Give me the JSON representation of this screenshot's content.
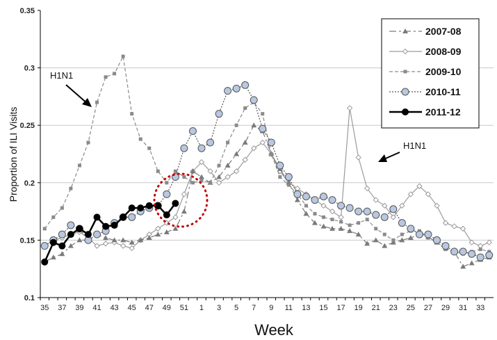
{
  "chart_data": {
    "type": "line",
    "xlabel": "Week",
    "ylabel": "Proportion of ILI Visits",
    "ylim": [
      0.1,
      0.35
    ],
    "yticks": [
      "0.1",
      "0.15",
      "0.2",
      "0.25",
      "0.3",
      "0.35"
    ],
    "x_tick_labels": [
      "35",
      "37",
      "39",
      "41",
      "43",
      "45",
      "47",
      "49",
      "51",
      "1",
      "3",
      "5",
      "7",
      "9",
      "11",
      "13",
      "15",
      "17",
      "19",
      "21",
      "23",
      "25",
      "27",
      "29",
      "31",
      "33"
    ],
    "x_weeks": [
      35,
      36,
      37,
      38,
      39,
      40,
      41,
      42,
      43,
      44,
      45,
      46,
      47,
      48,
      49,
      50,
      51,
      52,
      1,
      2,
      3,
      4,
      5,
      6,
      7,
      8,
      9,
      10,
      11,
      12,
      13,
      14,
      15,
      16,
      17,
      18,
      19,
      20,
      21,
      22,
      23,
      24,
      25,
      26,
      27,
      28,
      29,
      30,
      31,
      32,
      33,
      34
    ],
    "grid": "horizontal",
    "legend_position": "top-right",
    "annotations": [
      {
        "text": "H1N1",
        "target": "2009-10 peak"
      },
      {
        "text": "H1N1",
        "target": "2008-09 week 18 spike"
      }
    ],
    "series": [
      {
        "name": "2007-08",
        "color": "#7a7a7a",
        "marker": "triangle",
        "dash": "10,4,3,4",
        "values": [
          0.131,
          0.135,
          0.138,
          0.145,
          0.15,
          0.15,
          0.155,
          0.152,
          0.15,
          0.15,
          0.148,
          0.15,
          0.152,
          0.155,
          0.157,
          0.16,
          0.175,
          0.21,
          0.205,
          0.2,
          0.205,
          0.215,
          0.225,
          0.235,
          0.25,
          0.245,
          0.225,
          0.212,
          0.2,
          0.185,
          0.173,
          0.165,
          0.162,
          0.16,
          0.16,
          0.158,
          0.155,
          0.147,
          0.15,
          0.145,
          0.148,
          0.15,
          0.152,
          0.155,
          0.153,
          0.148,
          0.143,
          0.14,
          0.127,
          0.13,
          0.133,
          0.135
        ]
      },
      {
        "name": "2008-09",
        "color": "#9a9a9a",
        "marker": "diamond",
        "dash": "",
        "values": [
          0.145,
          0.15,
          0.152,
          0.155,
          0.157,
          0.152,
          0.145,
          0.147,
          0.148,
          0.145,
          0.143,
          0.15,
          0.155,
          0.16,
          0.165,
          0.17,
          0.19,
          0.21,
          0.218,
          0.21,
          0.2,
          0.205,
          0.21,
          0.22,
          0.23,
          0.235,
          0.225,
          0.21,
          0.2,
          0.195,
          0.19,
          0.185,
          0.18,
          0.175,
          0.17,
          0.265,
          0.222,
          0.195,
          0.185,
          0.18,
          0.17,
          0.18,
          0.19,
          0.197,
          0.19,
          0.18,
          0.165,
          0.162,
          0.16,
          0.148,
          0.145,
          0.148
        ]
      },
      {
        "name": "2009-10",
        "color": "#8a8a8a",
        "marker": "square",
        "dash": "5,3",
        "values": [
          0.16,
          0.17,
          0.178,
          0.195,
          0.215,
          0.235,
          0.27,
          0.292,
          0.295,
          0.31,
          0.26,
          0.238,
          0.23,
          0.21,
          0.2,
          0.21,
          0.205,
          0.2,
          0.202,
          0.2,
          0.215,
          0.235,
          0.25,
          0.265,
          0.27,
          0.26,
          0.225,
          0.205,
          0.198,
          0.19,
          0.18,
          0.173,
          0.17,
          0.168,
          0.166,
          0.163,
          0.165,
          0.168,
          0.16,
          0.155,
          0.15,
          0.155,
          0.158,
          0.158,
          0.152,
          0.148,
          0.142,
          0.14,
          0.138,
          0.14,
          0.142,
          0.14
        ]
      },
      {
        "name": "2010-11",
        "color": "#555555",
        "marker": "circle-light",
        "dash": "2,2",
        "values": [
          0.145,
          0.15,
          0.155,
          0.163,
          0.16,
          0.15,
          0.155,
          0.158,
          0.165,
          0.17,
          0.17,
          0.175,
          0.178,
          0.18,
          0.19,
          0.205,
          0.23,
          0.245,
          0.23,
          0.235,
          0.26,
          0.28,
          0.282,
          0.285,
          0.272,
          0.247,
          0.235,
          0.215,
          0.205,
          0.19,
          0.188,
          0.185,
          0.188,
          0.185,
          0.18,
          0.178,
          0.175,
          0.175,
          0.172,
          0.17,
          0.177,
          0.165,
          0.16,
          0.155,
          0.155,
          0.15,
          0.145,
          0.14,
          0.14,
          0.138,
          0.135,
          0.137
        ]
      },
      {
        "name": "2011-12",
        "color": "#000000",
        "marker": "circle-solid",
        "dash": "",
        "values": [
          0.131,
          0.148,
          0.145,
          0.155,
          0.16,
          0.155,
          0.17,
          0.162,
          0.163,
          0.17,
          0.178,
          0.178,
          0.18,
          0.18,
          0.172,
          0.182
        ]
      }
    ]
  }
}
